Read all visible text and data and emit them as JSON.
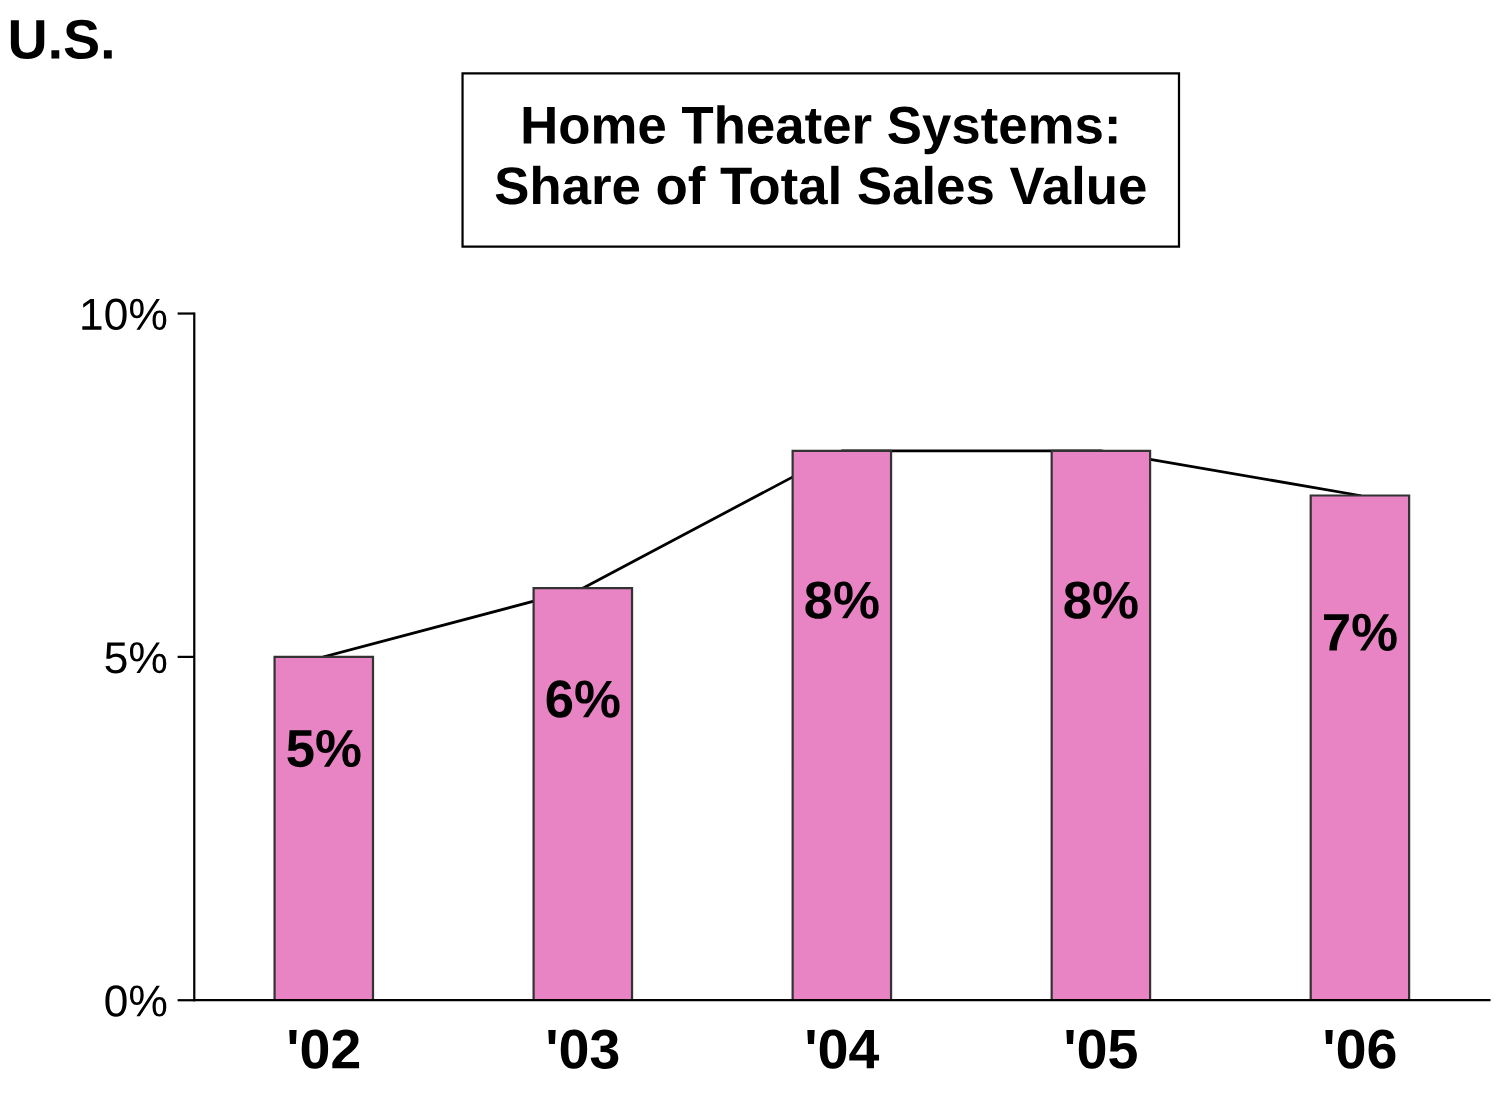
{
  "chart_data": {
    "type": "bar",
    "title": "Home Theater Systems:\nShare of Total Sales Value",
    "annotations": [
      "U.S."
    ],
    "categories": [
      "'02",
      "'03",
      "'04",
      "'05",
      "'06"
    ],
    "series": [
      {
        "color": "#e884c4",
        "values": [
          5,
          6,
          8,
          8,
          7.35
        ],
        "value_labels": [
          "5%",
          "6%",
          "8%",
          "8%",
          "7%"
        ]
      },
      {
        "type": "line",
        "color": "#000000",
        "values": [
          5,
          6,
          8,
          8,
          7.35
        ]
      }
    ],
    "ylim": [
      0,
      10
    ],
    "yticks": [
      {
        "value": 0,
        "label": "0%"
      },
      {
        "value": 5,
        "label": "5%"
      },
      {
        "value": 10,
        "label": "10%"
      }
    ],
    "grid": false,
    "legend": false,
    "marker": "none"
  }
}
